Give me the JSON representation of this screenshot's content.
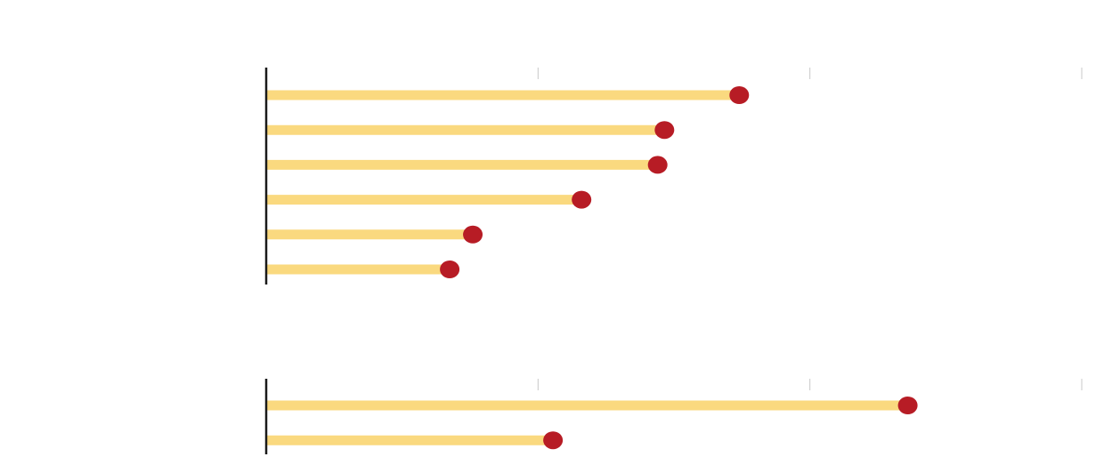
{
  "colors": {
    "stem": "#fad97f",
    "dot": "#b71c25",
    "baseline": "#1a1a1a",
    "tick": "#c8c8c8"
  },
  "chart_data": [
    {
      "type": "lollipop",
      "orientation": "horizontal",
      "title": "",
      "xlabel": "",
      "ylabel": "",
      "xlim": [
        0,
        30
      ],
      "x_ticks": [
        10,
        20,
        30
      ],
      "grid": false,
      "legend": "none",
      "values": [
        17.4,
        14.65,
        14.4,
        11.6,
        7.6,
        6.75
      ]
    },
    {
      "type": "lollipop",
      "orientation": "horizontal",
      "title": "",
      "xlabel": "",
      "ylabel": "",
      "xlim": [
        0,
        30
      ],
      "x_ticks": [
        10,
        20,
        30
      ],
      "grid": false,
      "legend": "none",
      "values": [
        23.6,
        10.55
      ]
    }
  ]
}
